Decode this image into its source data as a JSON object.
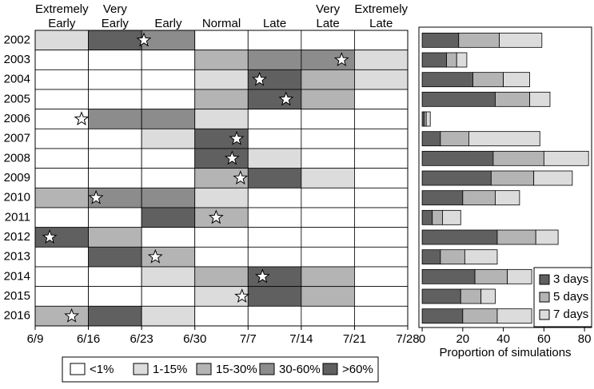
{
  "chart_data": [
    {
      "type": "heatmap",
      "columns": [
        [
          "Extremely",
          "Early"
        ],
        [
          "Very",
          "Early"
        ],
        [
          "Early"
        ],
        [
          "Normal"
        ],
        [
          "Late"
        ],
        [
          "Very",
          "Late"
        ],
        [
          "Extremely",
          "Late"
        ]
      ],
      "rows": [
        "2002",
        "2003",
        "2004",
        "2005",
        "2006",
        "2007",
        "2008",
        "2009",
        "2010",
        "2011",
        "2012",
        "2013",
        "2014",
        "2015",
        "2016"
      ],
      "levels": [
        [
          1,
          4,
          3,
          0,
          0,
          0,
          0
        ],
        [
          0,
          0,
          0,
          2,
          3,
          3,
          1
        ],
        [
          0,
          0,
          0,
          1,
          4,
          2,
          1
        ],
        [
          0,
          0,
          0,
          2,
          4,
          2,
          0
        ],
        [
          0,
          3,
          3,
          1,
          0,
          0,
          0
        ],
        [
          0,
          0,
          1,
          4,
          0,
          0,
          0
        ],
        [
          0,
          0,
          0,
          4,
          1,
          0,
          0
        ],
        [
          0,
          0,
          0,
          2,
          4,
          1,
          0
        ],
        [
          2,
          3,
          3,
          1,
          0,
          0,
          0
        ],
        [
          0,
          0,
          4,
          2,
          0,
          0,
          0
        ],
        [
          4,
          2,
          0,
          0,
          0,
          0,
          0
        ],
        [
          0,
          4,
          2,
          0,
          0,
          0,
          0
        ],
        [
          0,
          0,
          1,
          2,
          4,
          2,
          0
        ],
        [
          0,
          0,
          0,
          1,
          4,
          2,
          0
        ],
        [
          2,
          4,
          1,
          0,
          0,
          0,
          0
        ]
      ],
      "stars": [
        14.3,
        40.3,
        29.5,
        33.0,
        6.1,
        26.5,
        25.9,
        27.0,
        8.0,
        23.8,
        1.9,
        15.8,
        29.9,
        27.2,
        4.8
      ],
      "xlim": [
        0,
        49
      ],
      "xticks": [
        {
          "value": 0,
          "label": "6/9"
        },
        {
          "value": 7,
          "label": "6/16"
        },
        {
          "value": 14,
          "label": "6/23"
        },
        {
          "value": 21,
          "label": "6/30"
        },
        {
          "value": 28,
          "label": "7/7"
        },
        {
          "value": 35,
          "label": "7/14"
        },
        {
          "value": 42,
          "label": "7/21"
        },
        {
          "value": 49,
          "label": "7/28"
        }
      ],
      "legend": {
        "labels": [
          "<1%",
          "1-15%",
          "15-30%",
          "30-60%",
          ">60%"
        ],
        "colors": [
          "#ffffff",
          "#dcdcdc",
          "#b4b4b4",
          "#8c8c8c",
          "#606060"
        ]
      }
    },
    {
      "type": "stacked-barh",
      "series": [
        {
          "name": "3 days",
          "color": "#606060",
          "values": [
            18,
            12,
            25,
            36,
            1,
            9,
            35,
            34,
            20,
            5,
            37,
            9,
            26,
            19,
            20
          ]
        },
        {
          "name": "5 days",
          "color": "#b4b4b4",
          "values": [
            20,
            5,
            15,
            17,
            1,
            14,
            25,
            21,
            16,
            5,
            19,
            12,
            16,
            10,
            17
          ]
        },
        {
          "name": "7 days",
          "color": "#dcdcdc",
          "values": [
            21,
            5,
            13,
            10,
            2,
            35,
            22,
            19,
            12,
            9,
            11,
            16,
            12,
            7,
            17
          ]
        }
      ],
      "xlim": [
        -1.6,
        83.5
      ],
      "xticks": [
        0,
        20,
        40,
        60,
        80
      ],
      "xlabel": "Proportion of simulations",
      "legend": "lower right"
    }
  ]
}
